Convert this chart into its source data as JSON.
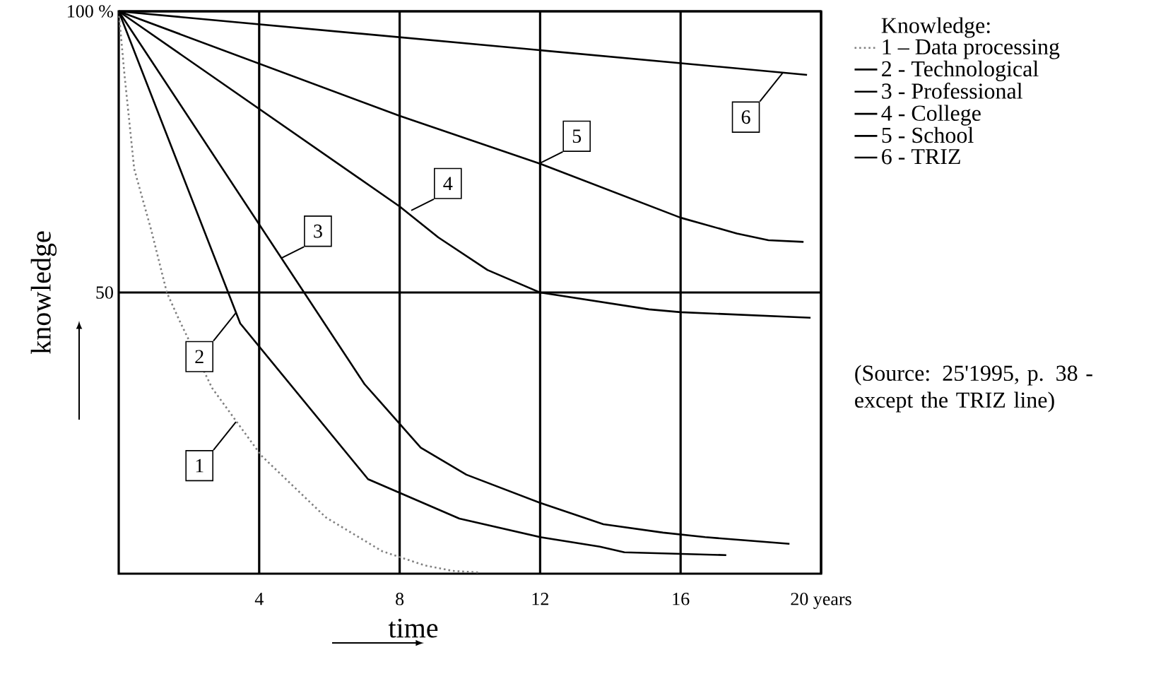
{
  "chart_data": {
    "type": "line",
    "xlabel": "time",
    "ylabel": "knowledge",
    "legend_title": "Knowledge:",
    "xlim": [
      0,
      20
    ],
    "ylim": [
      0,
      100
    ],
    "xticks": [
      4,
      8,
      12,
      16,
      {
        "value": 20,
        "label": "20  years"
      }
    ],
    "yticks": [
      50,
      {
        "value": 100,
        "label": "100 %"
      }
    ],
    "grid": true,
    "legend": "right",
    "series": [
      {
        "name": "1 – Data processing",
        "color": "#808080",
        "line_style": "dotted",
        "x": [
          0,
          0.16,
          0.44,
          0.93,
          1.37,
          1.73,
          2.66,
          4.06,
          5.9,
          7.5,
          8.7,
          9.5,
          10.3
        ],
        "values": [
          100,
          89,
          72,
          61,
          50,
          45,
          33,
          21,
          10,
          4,
          1.5,
          0.5,
          0.2
        ]
      },
      {
        "name": "2 - Technological",
        "color": "#000000",
        "x": [
          0,
          3.46,
          7.1,
          9.7,
          12,
          13.7,
          14.4,
          17.3
        ],
        "values": [
          100,
          44.5,
          16.8,
          9.8,
          6.5,
          4.8,
          3.8,
          3.3
        ]
      },
      {
        "name": "3 - Professional",
        "color": "#000000",
        "x": [
          0,
          7,
          7.4,
          8.6,
          9.9,
          12,
          13.8,
          15.5,
          16.7,
          19.1
        ],
        "values": [
          100,
          33.7,
          30.9,
          22.4,
          17.6,
          12.6,
          8.8,
          7.3,
          6.5,
          5.3
        ]
      },
      {
        "name": "4 - College",
        "color": "#000000",
        "x": [
          0,
          8,
          9.1,
          10.5,
          12,
          15.1,
          16,
          19.7
        ],
        "values": [
          100,
          65.3,
          59.8,
          54,
          50,
          47,
          46.5,
          45.5
        ]
      },
      {
        "name": "5 - School",
        "color": "#000000",
        "x": [
          0,
          8,
          12,
          16,
          17.6,
          18.5,
          19.5
        ],
        "values": [
          100,
          81.4,
          72.9,
          63.3,
          60.5,
          59.3,
          59
        ]
      },
      {
        "name": "6 - TRIZ",
        "color": "#000000",
        "x": [
          0,
          19.6
        ],
        "values": [
          100,
          88.7
        ]
      }
    ],
    "annotations": [
      {
        "text": "1",
        "x": 3.34,
        "y": 27
      },
      {
        "text": "2",
        "x": 3.34,
        "y": 46.4
      },
      {
        "text": "3",
        "x": 4.63,
        "y": 56.1
      },
      {
        "text": "4",
        "x": 8.33,
        "y": 64.6
      },
      {
        "text": "5",
        "x": 12,
        "y": 73
      },
      {
        "text": "6",
        "x": 18.9,
        "y": 89
      },
      "(Source: 25'1995, p. 38 - except the TRIZ line)"
    ]
  }
}
